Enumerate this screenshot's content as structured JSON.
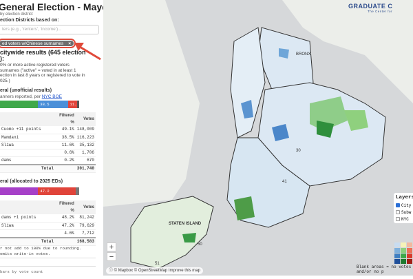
{
  "panel": {
    "title": "General Election - Mayor",
    "subtitle": "by election district",
    "filter_label": "ection Districts based on:",
    "search_placeholder": "ters (e.g., 'renters', 'income')...",
    "chip_label": "ed voters w/Chinese surnames",
    "chip_close": "×",
    "results_heading": "citywide results (645 election",
    "results_heading2": "):",
    "description": [
      "0% or more active registered voters",
      "surnames (\"active\" = voted in at least 1",
      "ection in last 8 years or registered to vote in",
      "025.)"
    ],
    "general": {
      "heading": "eral (unofficial results)",
      "reported": "anners reported, per ",
      "link": "NYC BOE",
      "bar": [
        {
          "value": 49.1,
          "label": "",
          "color": "#3fa84a"
        },
        {
          "value": 38.5,
          "label": "38.5",
          "color": "#4a8fd8"
        },
        {
          "value": 11.6,
          "label": "11.6",
          "color": "#e0443a"
        },
        {
          "value": 0.8,
          "label": "",
          "color": "#555"
        }
      ],
      "columns": [
        "",
        "Filtered %",
        "Votes"
      ],
      "rows": [
        [
          "Cuomo +11 points",
          "49.1%",
          "148,009"
        ],
        [
          "Mamdani",
          "38.5%",
          "116,223"
        ],
        [
          "Sliwa",
          "11.6%",
          "35,132"
        ],
        [
          "",
          "0.6%",
          "1,706"
        ],
        [
          "dams",
          "0.2%",
          "670"
        ]
      ],
      "total_label": "Total",
      "total": "301,740"
    },
    "primary": {
      "heading": "eral (allocated to 2025 EDs)",
      "bar": [
        {
          "value": 48.2,
          "label": "",
          "color": "#a640c8"
        },
        {
          "value": 47.2,
          "label": "47.2",
          "color": "#e0443a"
        },
        {
          "value": 4.6,
          "label": "",
          "color": "#777"
        }
      ],
      "columns": [
        "",
        "Filtered %",
        "Votes"
      ],
      "rows": [
        [
          "dams +1 points",
          "48.2%",
          "81,242"
        ],
        [
          "Sliwa",
          "47.2%",
          "79,629"
        ],
        [
          "",
          "4.6%",
          "7,712"
        ]
      ],
      "total_label": "Total",
      "total": "168,583",
      "notes": [
        "r not add to 100% due to rounding.",
        "omits write-in votes."
      ]
    },
    "sort_option": "bars by vote count"
  },
  "map": {
    "logo": "GRADUATE C",
    "logo_sub": "The Center for",
    "labels": {
      "staten": "STATEN ISLAND",
      "bronx": "BRONX",
      "d51": "51",
      "d50": "50",
      "d30": "30",
      "d41": "41"
    },
    "zoom_in": "+",
    "zoom_out": "−",
    "attribution": "© Mapbox © OpenStreetMap Improve this map",
    "layers": {
      "title": "Layers",
      "items": [
        {
          "label": "City",
          "checked": true
        },
        {
          "label": "Subw",
          "checked": false
        },
        {
          "label": "NYC",
          "checked": false
        }
      ]
    },
    "legend_headers": [
      "Mamdani",
      "Cuomo",
      "Sliwa",
      "Ad"
    ],
    "legend_colors": [
      [
        "#c8dcf0",
        "#f6f3b8",
        "#f2b8a0",
        "#e0c8e8"
      ],
      [
        "#7fb0dc",
        "#8ccf7e",
        "#ec7058",
        "#c48ad8"
      ],
      [
        "#3f7fc2",
        "#3ea84a",
        "#d83a2c",
        "#a048c0"
      ],
      [
        "#1f4f9a",
        "#1d7a30",
        "#a01e16",
        "#6a1f8a"
      ]
    ],
    "blank_note": "Blank areas = no votes and/or no p"
  }
}
